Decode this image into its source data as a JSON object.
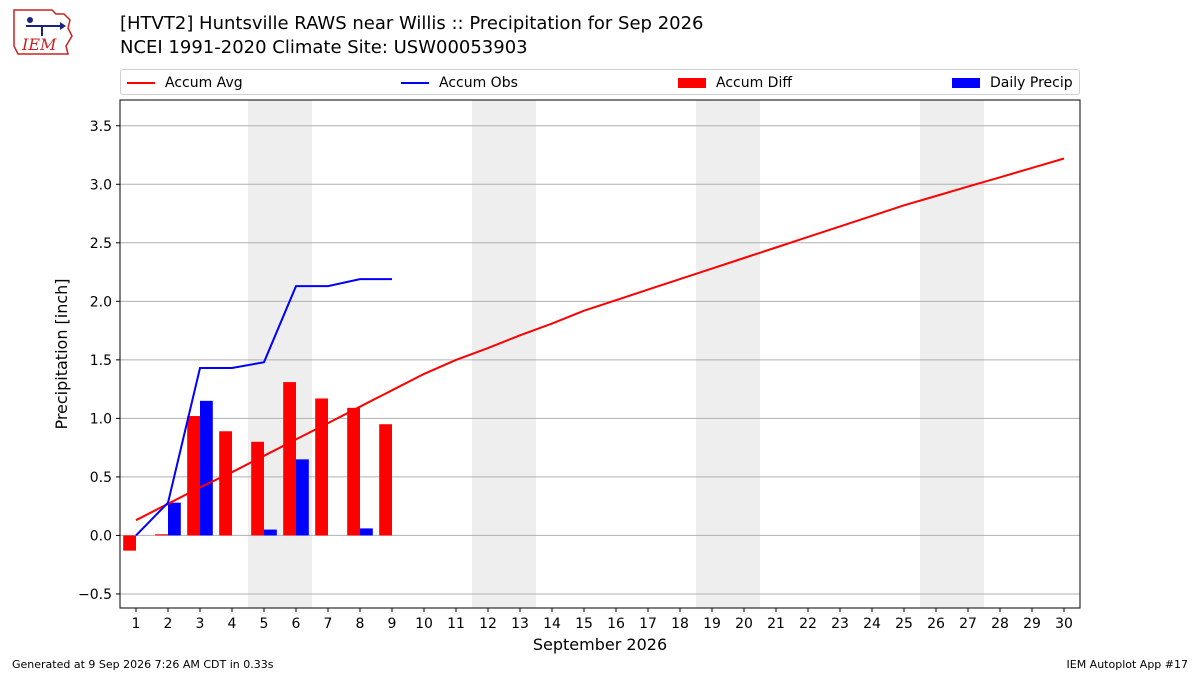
{
  "header": {
    "title_line1": "[HTVT2] Huntsville RAWS near Willis :: Precipitation for Sep 2026",
    "title_line2": "NCEI 1991-2020 Climate Site: USW00053903",
    "logo_text": "IEM"
  },
  "legend": {
    "position": "top",
    "items": [
      {
        "label": "Accum Avg",
        "color": "#ff0000",
        "kind": "line"
      },
      {
        "label": "Accum Obs",
        "color": "#0000ff",
        "kind": "line"
      },
      {
        "label": "Accum Diff",
        "color": "#ff0000",
        "kind": "bar"
      },
      {
        "label": "Daily Precip",
        "color": "#0000ff",
        "kind": "bar"
      }
    ]
  },
  "chart_data": {
    "type": "bar",
    "title": "[HTVT2] Huntsville RAWS near Willis :: Precipitation for Sep 2026",
    "subtitle": "NCEI 1991-2020 Climate Site: USW00053903",
    "xlabel": "September 2026",
    "ylabel": "Precipitation [inch]",
    "xlim": [
      0.5,
      30.5
    ],
    "ylim": [
      -0.62,
      3.72
    ],
    "yticks": [
      -0.5,
      0.0,
      0.5,
      1.0,
      1.5,
      2.0,
      2.5,
      3.0,
      3.5
    ],
    "ytick_labels": [
      "−0.5",
      "0.0",
      "0.5",
      "1.0",
      "1.5",
      "2.0",
      "2.5",
      "3.0",
      "3.5"
    ],
    "x": [
      1,
      2,
      3,
      4,
      5,
      6,
      7,
      8,
      9,
      10,
      11,
      12,
      13,
      14,
      15,
      16,
      17,
      18,
      19,
      20,
      21,
      22,
      23,
      24,
      25,
      26,
      27,
      28,
      29,
      30
    ],
    "xtick_labels": [
      "1",
      "2",
      "3",
      "4",
      "5",
      "6",
      "7",
      "8",
      "9",
      "10",
      "11",
      "12",
      "13",
      "14",
      "15",
      "16",
      "17",
      "18",
      "19",
      "20",
      "21",
      "22",
      "23",
      "24",
      "25",
      "26",
      "27",
      "28",
      "29",
      "30"
    ],
    "grid": {
      "y": true,
      "x": false
    },
    "weekend_shading": [
      [
        5,
        6
      ],
      [
        12,
        13
      ],
      [
        19,
        20
      ],
      [
        26,
        27
      ]
    ],
    "series": [
      {
        "name": "Accum Avg",
        "type": "line",
        "color": "#ff0000",
        "x": [
          1,
          2,
          3,
          4,
          5,
          6,
          7,
          8,
          9,
          10,
          11,
          12,
          13,
          14,
          15,
          16,
          17,
          18,
          19,
          20,
          21,
          22,
          23,
          24,
          25,
          26,
          27,
          28,
          29,
          30
        ],
        "values": [
          0.13,
          0.27,
          0.41,
          0.54,
          0.68,
          0.82,
          0.96,
          1.1,
          1.24,
          1.38,
          1.5,
          1.6,
          1.71,
          1.81,
          1.92,
          2.01,
          2.1,
          2.19,
          2.28,
          2.37,
          2.46,
          2.55,
          2.64,
          2.73,
          2.82,
          2.9,
          2.98,
          3.06,
          3.14,
          3.22
        ]
      },
      {
        "name": "Accum Obs",
        "type": "line",
        "color": "#0000ff",
        "x": [
          1,
          2,
          3,
          4,
          5,
          6,
          7,
          8,
          9
        ],
        "values": [
          0.0,
          0.28,
          1.43,
          1.43,
          1.48,
          2.13,
          2.13,
          2.19,
          2.19
        ]
      },
      {
        "name": "Accum Diff",
        "type": "bar",
        "color": "#ff0000",
        "x": [
          1,
          2,
          3,
          4,
          5,
          6,
          7,
          8,
          9
        ],
        "values": [
          -0.13,
          0.01,
          1.02,
          0.89,
          0.8,
          1.31,
          1.17,
          1.09,
          0.95
        ]
      },
      {
        "name": "Daily Precip",
        "type": "bar",
        "color": "#0000ff",
        "x": [
          1,
          2,
          3,
          4,
          5,
          6,
          7,
          8,
          9
        ],
        "values": [
          0.0,
          0.28,
          1.15,
          0.0,
          0.05,
          0.65,
          0.0,
          0.06,
          0.0
        ]
      }
    ]
  },
  "footer": {
    "left": "Generated at 9 Sep 2026 7:26 AM CDT in 0.33s",
    "right": "IEM Autoplot App #17"
  }
}
